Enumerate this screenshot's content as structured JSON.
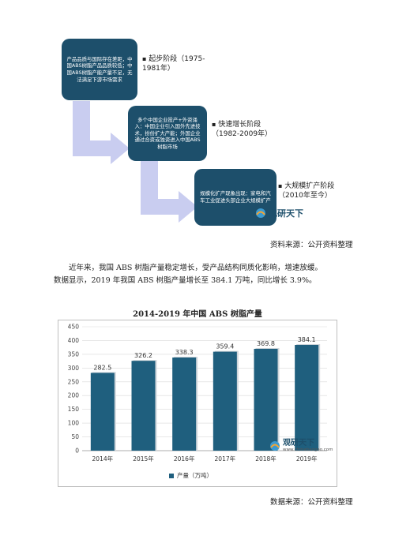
{
  "diagram": {
    "stages": [
      {
        "box_text": "产品品质与国际存在差距，中国ABS树脂产品品质较低；中国ABS树脂产能产量不足，无法满足下游市场需求",
        "label": "起步阶段（1975-1981年）"
      },
      {
        "box_text": "多个中国企业投产+外资涌入：中国企业引入国外先进技术，扮份扩大产能；外国企业通过合资或独资进入中国ABS树脂市场",
        "label": "快速增长阶段（1982-2009年）"
      },
      {
        "box_text": "规模化扩产现象出现：家电和汽车工业促进头部企业大规模扩产",
        "label": "大规模扩产阶段（2010年至今）"
      }
    ],
    "logo_text": "观研天下",
    "source": "资料来源：公开资料整理"
  },
  "paragraph": [
    "近年来，我国 ABS 树脂产量稳定增长，受产品结构同质化影响，增速放缓。",
    "数据显示，2019 年我国 ABS 树脂产量增长至 384.1 万吨，同比增长 3.9%。"
  ],
  "chart_data": {
    "type": "bar",
    "title": "2014-2019 年中国 ABS 树脂产量",
    "categories": [
      "2014年",
      "2015年",
      "2016年",
      "2017年",
      "2018年",
      "2019年"
    ],
    "series": [
      {
        "name": "产量（万吨）",
        "values": [
          282.5,
          326.2,
          338.3,
          359.4,
          369.8,
          384.1
        ]
      }
    ],
    "ylim": [
      0,
      450
    ],
    "yticks": [
      0,
      50,
      100,
      150,
      200,
      250,
      300,
      350,
      400,
      450
    ],
    "data_labels": [
      "282.5",
      "326.2",
      "338.3",
      "359.4",
      "369.8",
      "384.1"
    ],
    "grid": true,
    "legend": "bottom",
    "bar_color": "#1f5f7e",
    "logo_text": "观研天下",
    "logo_url": "www.chinabaogao.com"
  },
  "chart_source": "数据来源：公开资料整理"
}
